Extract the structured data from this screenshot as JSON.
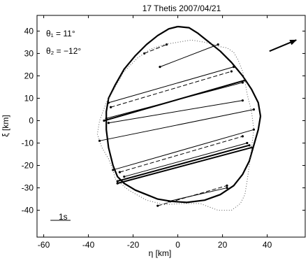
{
  "chart_data": {
    "type": "line",
    "title": "17 Thetis   2007/04/21",
    "xlabel": "η [km]",
    "ylabel": "ξ [km]",
    "xlim": [
      -63,
      57
    ],
    "ylim": [
      -52,
      47
    ],
    "xticks": [
      -60,
      -40,
      -20,
      0,
      20,
      40
    ],
    "yticks": [
      -40,
      -30,
      -20,
      -10,
      0,
      10,
      20,
      30,
      40
    ],
    "grid": false,
    "annotations": {
      "theta1": "θ₁ = 11°",
      "theta2": "θ₂ = −12°",
      "scale_bar": "1s"
    },
    "scale_bar_x": [
      -57,
      -48
    ],
    "scale_bar_y": -44.5,
    "direction_arrow": {
      "from": [
        41,
        31
      ],
      "to": [
        53,
        36
      ]
    },
    "series": [
      {
        "style": "solid-thick",
        "x": [
          0,
          5,
          9,
          14,
          19,
          24,
          29,
          33,
          36,
          37,
          36,
          34,
          32,
          29,
          25,
          19,
          12,
          4,
          -3,
          -9,
          -14,
          -19,
          -24,
          -27,
          -29,
          -31,
          -32,
          -32,
          -31,
          -28,
          -24,
          -19,
          -14,
          -9,
          -4,
          0
        ],
        "y": [
          42,
          41.5,
          39,
          35,
          31,
          26,
          20,
          14,
          8,
          2,
          -4,
          -11,
          -18,
          -24,
          -29,
          -33,
          -35.5,
          -36.5,
          -36,
          -35,
          -33,
          -31,
          -28,
          -25,
          -20,
          -12,
          -4,
          4,
          10,
          16,
          23,
          29,
          34,
          38,
          41,
          42
        ]
      },
      {
        "style": "dotted",
        "x": [
          -28,
          -22,
          -14,
          -6,
          2,
          10,
          18,
          24,
          28,
          30,
          31,
          32,
          33,
          34,
          33,
          31,
          30,
          29,
          27,
          25,
          22,
          19,
          16,
          12,
          6,
          0,
          -6,
          -12,
          -18,
          -24,
          -28,
          -32,
          -35,
          -36,
          -34,
          -31,
          -29,
          -28
        ],
        "y": [
          -26,
          -31,
          -35.5,
          -37.5,
          -37,
          -37,
          -40,
          -40,
          -37,
          -33,
          -27,
          -20,
          -12,
          -4,
          4,
          12,
          18,
          22,
          27,
          30.5,
          32.5,
          33,
          34,
          35,
          36,
          35,
          34,
          32,
          28,
          22,
          15,
          8,
          0,
          -6,
          -12,
          -17,
          -22,
          -26
        ]
      }
    ],
    "chords": [
      {
        "style": "dashed",
        "x": [
          -15,
          -5
        ],
        "y": [
          30,
          34
        ]
      },
      {
        "style": "solid",
        "x": [
          -8,
          18
        ],
        "y": [
          24,
          34
        ]
      },
      {
        "style": "solid",
        "x": [
          -31,
          25
        ],
        "y": [
          8,
          24
        ]
      },
      {
        "style": "dashed",
        "x": [
          -30,
          24
        ],
        "y": [
          6,
          22
        ]
      },
      {
        "style": "solid",
        "x": [
          -32,
          29
        ],
        "y": [
          1,
          17
        ]
      },
      {
        "style": "solid-bold",
        "x": [
          -33,
          30
        ],
        "y": [
          0,
          18
        ]
      },
      {
        "style": "solid",
        "x": [
          -31,
          29
        ],
        "y": [
          -1,
          9
        ]
      },
      {
        "style": "solid",
        "x": [
          -35,
          34
        ],
        "y": [
          -9,
          5
        ]
      },
      {
        "style": "solid",
        "x": [
          -29,
          34
        ],
        "y": [
          -22,
          -4
        ]
      },
      {
        "style": "dashed",
        "x": [
          -26,
          29
        ],
        "y": [
          -23,
          -7
        ]
      },
      {
        "style": "solid",
        "x": [
          -24,
          31
        ],
        "y": [
          -25,
          -10
        ]
      },
      {
        "style": "solid-bold",
        "x": [
          -27,
          32
        ],
        "y": [
          -27,
          -11
        ]
      },
      {
        "style": "solid-bold",
        "x": [
          -27,
          33
        ],
        "y": [
          -28,
          -12
        ]
      },
      {
        "style": "dashed",
        "x": [
          -9,
          22
        ],
        "y": [
          -38,
          -29
        ]
      },
      {
        "style": "solid",
        "x": [
          -4,
          22
        ],
        "y": [
          -36,
          -30
        ]
      }
    ]
  }
}
